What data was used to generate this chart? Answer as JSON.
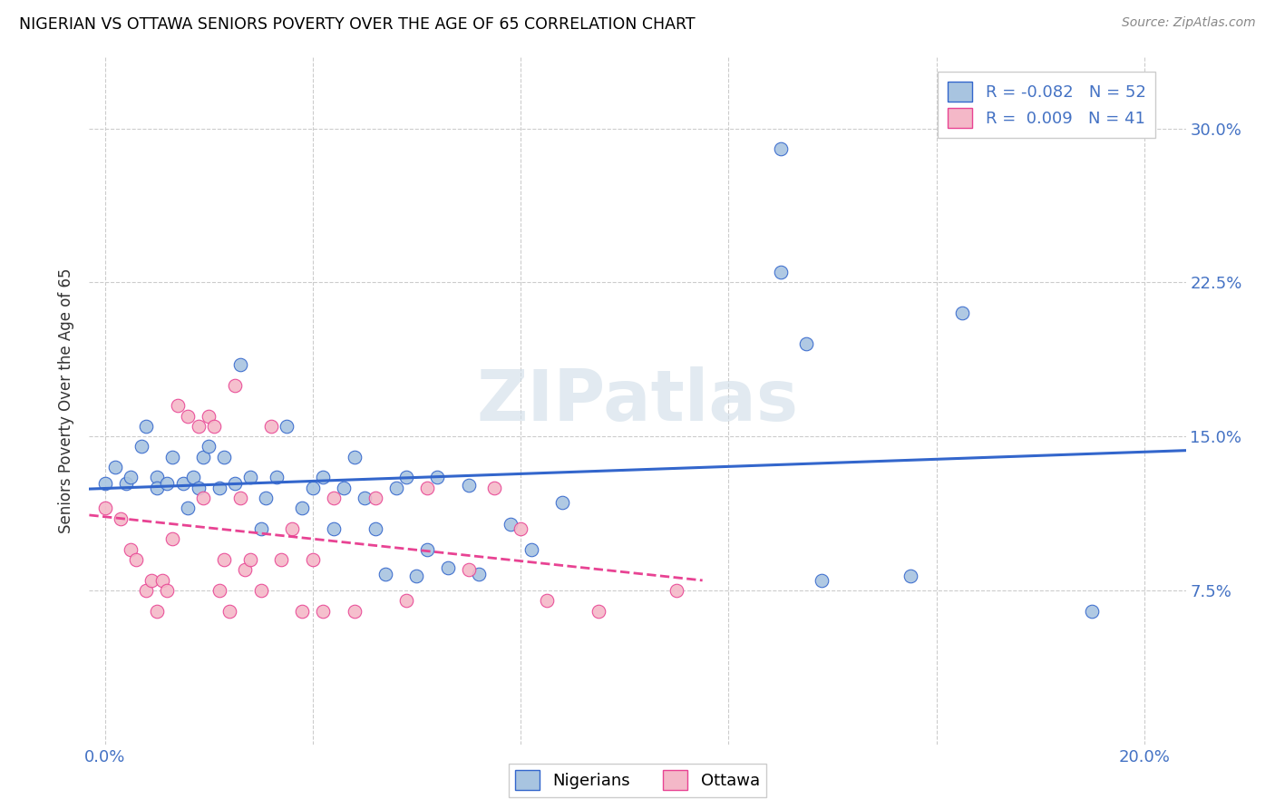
{
  "title": "NIGERIAN VS OTTAWA SENIORS POVERTY OVER THE AGE OF 65 CORRELATION CHART",
  "source": "Source: ZipAtlas.com",
  "ylabel_label": "Seniors Poverty Over the Age of 65",
  "x_ticks": [
    0.0,
    0.04,
    0.08,
    0.12,
    0.16,
    0.2
  ],
  "x_tick_labels": [
    "0.0%",
    "",
    "",
    "",
    "",
    "20.0%"
  ],
  "y_ticks": [
    0.075,
    0.15,
    0.225,
    0.3
  ],
  "y_tick_labels": [
    "7.5%",
    "15.0%",
    "22.5%",
    "30.0%"
  ],
  "xlim": [
    -0.003,
    0.208
  ],
  "ylim": [
    0.0,
    0.335
  ],
  "legend_r_nigerian": "-0.082",
  "legend_n_nigerian": "52",
  "legend_r_ottawa": "0.009",
  "legend_n_ottawa": "41",
  "watermark": "ZIPatlas",
  "nigerian_color": "#a8c4e0",
  "ottawa_color": "#f4b8c8",
  "trendline_nigerian_color": "#3366cc",
  "trendline_ottawa_color": "#e84393",
  "nigerian_scatter": [
    [
      0.0,
      0.127
    ],
    [
      0.002,
      0.135
    ],
    [
      0.004,
      0.127
    ],
    [
      0.005,
      0.13
    ],
    [
      0.007,
      0.145
    ],
    [
      0.008,
      0.155
    ],
    [
      0.01,
      0.13
    ],
    [
      0.01,
      0.125
    ],
    [
      0.012,
      0.127
    ],
    [
      0.013,
      0.14
    ],
    [
      0.015,
      0.127
    ],
    [
      0.016,
      0.115
    ],
    [
      0.017,
      0.13
    ],
    [
      0.018,
      0.125
    ],
    [
      0.019,
      0.14
    ],
    [
      0.02,
      0.145
    ],
    [
      0.022,
      0.125
    ],
    [
      0.023,
      0.14
    ],
    [
      0.025,
      0.127
    ],
    [
      0.026,
      0.185
    ],
    [
      0.028,
      0.13
    ],
    [
      0.03,
      0.105
    ],
    [
      0.031,
      0.12
    ],
    [
      0.033,
      0.13
    ],
    [
      0.035,
      0.155
    ],
    [
      0.038,
      0.115
    ],
    [
      0.04,
      0.125
    ],
    [
      0.042,
      0.13
    ],
    [
      0.044,
      0.105
    ],
    [
      0.046,
      0.125
    ],
    [
      0.048,
      0.14
    ],
    [
      0.05,
      0.12
    ],
    [
      0.052,
      0.105
    ],
    [
      0.054,
      0.083
    ],
    [
      0.056,
      0.125
    ],
    [
      0.058,
      0.13
    ],
    [
      0.06,
      0.082
    ],
    [
      0.062,
      0.095
    ],
    [
      0.064,
      0.13
    ],
    [
      0.066,
      0.086
    ],
    [
      0.07,
      0.126
    ],
    [
      0.072,
      0.083
    ],
    [
      0.078,
      0.107
    ],
    [
      0.082,
      0.095
    ],
    [
      0.088,
      0.118
    ],
    [
      0.13,
      0.29
    ],
    [
      0.13,
      0.23
    ],
    [
      0.135,
      0.195
    ],
    [
      0.138,
      0.08
    ],
    [
      0.155,
      0.082
    ],
    [
      0.165,
      0.21
    ],
    [
      0.19,
      0.065
    ]
  ],
  "ottawa_scatter": [
    [
      0.0,
      0.115
    ],
    [
      0.003,
      0.11
    ],
    [
      0.005,
      0.095
    ],
    [
      0.006,
      0.09
    ],
    [
      0.008,
      0.075
    ],
    [
      0.009,
      0.08
    ],
    [
      0.01,
      0.065
    ],
    [
      0.011,
      0.08
    ],
    [
      0.012,
      0.075
    ],
    [
      0.013,
      0.1
    ],
    [
      0.014,
      0.165
    ],
    [
      0.016,
      0.16
    ],
    [
      0.018,
      0.155
    ],
    [
      0.019,
      0.12
    ],
    [
      0.02,
      0.16
    ],
    [
      0.021,
      0.155
    ],
    [
      0.022,
      0.075
    ],
    [
      0.023,
      0.09
    ],
    [
      0.024,
      0.065
    ],
    [
      0.025,
      0.175
    ],
    [
      0.026,
      0.12
    ],
    [
      0.027,
      0.085
    ],
    [
      0.028,
      0.09
    ],
    [
      0.03,
      0.075
    ],
    [
      0.032,
      0.155
    ],
    [
      0.034,
      0.09
    ],
    [
      0.036,
      0.105
    ],
    [
      0.038,
      0.065
    ],
    [
      0.04,
      0.09
    ],
    [
      0.042,
      0.065
    ],
    [
      0.044,
      0.12
    ],
    [
      0.048,
      0.065
    ],
    [
      0.052,
      0.12
    ],
    [
      0.058,
      0.07
    ],
    [
      0.062,
      0.125
    ],
    [
      0.07,
      0.085
    ],
    [
      0.075,
      0.125
    ],
    [
      0.08,
      0.105
    ],
    [
      0.085,
      0.07
    ],
    [
      0.095,
      0.065
    ],
    [
      0.11,
      0.075
    ]
  ]
}
